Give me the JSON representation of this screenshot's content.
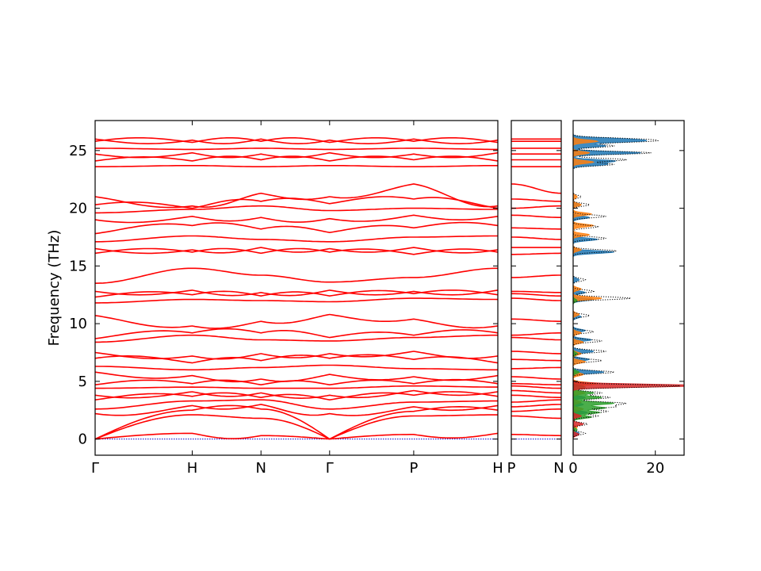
{
  "chart_data": {
    "type": "line",
    "ylabel": "Frequency (THz)",
    "ylim": [
      -1.4,
      27.6
    ],
    "yticks": [
      0,
      5,
      10,
      15,
      20,
      25
    ],
    "grid": false,
    "panels": [
      {
        "name": "band-main",
        "kpoints": [
          "Γ",
          "H",
          "N",
          "Γ",
          "P",
          "H"
        ],
        "kpoint_distances": [
          0,
          0.866,
          1.479,
          2.091,
          2.841,
          3.591
        ],
        "band_color": "#ff0000",
        "zero_line_color": "#0000cc",
        "band_frequencies": [
          {
            "Γ": 0,
            "H": 0.5,
            "N": 0.3,
            "Γ2": 0,
            "P": 0.4,
            "H2": 0.5
          },
          {
            "Γ": 0,
            "H": 2.1,
            "N": 1.8,
            "Γ2": 0,
            "P": 2.0,
            "H2": 2.1
          },
          {
            "Γ": 0,
            "H": 2.5,
            "N": 2.6,
            "Γ2": 0,
            "P": 2.4,
            "H2": 2.5
          },
          {
            "Γ": 2.2,
            "H": 2.9,
            "N": 3.0,
            "Γ2": 2.2,
            "P": 2.8,
            "H2": 2.9
          },
          {
            "Γ": 2.6,
            "H": 3.3,
            "N": 3.4,
            "Γ2": 2.6,
            "P": 3.2,
            "H2": 3.3
          },
          {
            "Γ": 3.4,
            "H": 3.7,
            "N": 3.6,
            "Γ2": 3.4,
            "P": 3.8,
            "H2": 3.7
          },
          {
            "Γ": 3.8,
            "H": 4.1,
            "N": 4.0,
            "Γ2": 3.8,
            "P": 4.2,
            "H2": 4.1
          },
          {
            "Γ": 4.4,
            "H": 4.5,
            "N": 4.4,
            "Γ2": 4.4,
            "P": 4.6,
            "H2": 4.5
          },
          {
            "Γ": 4.7,
            "H": 4.8,
            "N": 4.7,
            "Γ2": 4.7,
            "P": 4.8,
            "H2": 4.8
          },
          {
            "Γ": 5.8,
            "H": 5.5,
            "N": 5.2,
            "Γ2": 5.6,
            "P": 5.4,
            "H2": 5.5
          },
          {
            "Γ": 6.3,
            "H": 6.0,
            "N": 6.2,
            "Γ2": 6.4,
            "P": 6.1,
            "H2": 6.0
          },
          {
            "Γ": 7.0,
            "H": 6.6,
            "N": 6.8,
            "Γ2": 7.0,
            "P": 6.9,
            "H2": 6.6
          },
          {
            "Γ": 7.5,
            "H": 7.2,
            "N": 7.4,
            "Γ2": 7.4,
            "P": 7.6,
            "H2": 7.2
          },
          {
            "Γ": 8.4,
            "H": 9.0,
            "N": 8.6,
            "Γ2": 8.5,
            "P": 8.8,
            "H2": 9.0
          },
          {
            "Γ": 8.7,
            "H": 9.2,
            "N": 9.2,
            "Γ2": 8.8,
            "P": 9.0,
            "H2": 9.2
          },
          {
            "Γ": 10.7,
            "H": 9.8,
            "N": 10.2,
            "Γ2": 10.8,
            "P": 10.4,
            "H2": 9.8
          },
          {
            "Γ": 11.8,
            "H": 12.1,
            "N": 12.0,
            "Γ2": 11.9,
            "P": 12.2,
            "H2": 12.1
          },
          {
            "Γ": 12.3,
            "H": 12.5,
            "N": 12.4,
            "Γ2": 12.4,
            "P": 12.6,
            "H2": 12.5
          },
          {
            "Γ": 12.8,
            "H": 12.9,
            "N": 12.7,
            "Γ2": 12.9,
            "P": 12.8,
            "H2": 12.9
          },
          {
            "Γ": 13.5,
            "H": 14.8,
            "N": 14.2,
            "Γ2": 13.6,
            "P": 14.0,
            "H2": 14.8
          },
          {
            "Γ": 16.1,
            "H": 16.2,
            "N": 16.1,
            "Γ2": 16.2,
            "P": 16.0,
            "H2": 16.2
          },
          {
            "Γ": 16.5,
            "H": 16.4,
            "N": 16.6,
            "Γ2": 16.5,
            "P": 16.6,
            "H2": 16.4
          },
          {
            "Γ": 17.1,
            "H": 17.6,
            "N": 17.3,
            "Γ2": 17.1,
            "P": 17.5,
            "H2": 17.6
          },
          {
            "Γ": 17.8,
            "H": 18.5,
            "N": 18.2,
            "Γ2": 17.9,
            "P": 18.3,
            "H2": 18.5
          },
          {
            "Γ": 19.0,
            "H": 19.3,
            "N": 19.2,
            "Γ2": 19.1,
            "P": 19.4,
            "H2": 19.3
          },
          {
            "Γ": 19.6,
            "H": 19.9,
            "N": 20.2,
            "Γ2": 19.8,
            "P": 20.0,
            "H2": 19.9
          },
          {
            "Γ": 20.3,
            "H": 20.0,
            "N": 20.6,
            "Γ2": 20.4,
            "P": 20.8,
            "H2": 20.0
          },
          {
            "Γ": 21.0,
            "H": 20.2,
            "N": 21.3,
            "Γ2": 21.0,
            "P": 22.1,
            "H2": 20.2
          },
          {
            "Γ": 23.6,
            "H": 23.7,
            "N": 23.6,
            "Γ2": 23.7,
            "P": 23.6,
            "H2": 23.7
          },
          {
            "Γ": 24.1,
            "H": 24.1,
            "N": 24.2,
            "Γ2": 24.1,
            "P": 24.2,
            "H2": 24.1
          },
          {
            "Γ": 24.7,
            "H": 24.8,
            "N": 24.7,
            "Γ2": 24.8,
            "P": 24.7,
            "H2": 24.8
          },
          {
            "Γ": 25.2,
            "H": 25.1,
            "N": 25.2,
            "Γ2": 25.1,
            "P": 25.2,
            "H2": 25.1
          },
          {
            "Γ": 25.8,
            "H": 25.7,
            "N": 25.8,
            "Γ2": 25.7,
            "P": 25.8,
            "H2": 25.7
          },
          {
            "Γ": 26.0,
            "H": 25.9,
            "N": 26.0,
            "Γ2": 25.9,
            "P": 26.0,
            "H2": 25.9
          }
        ]
      },
      {
        "name": "band-pn",
        "kpoints": [
          "P",
          "N"
        ],
        "band_color": "#ff0000",
        "zero_line_color": "#0000cc",
        "band_frequencies_P": [
          0.4,
          2.0,
          2.4,
          2.8,
          3.2,
          3.8,
          4.2,
          4.6,
          4.8,
          5.4,
          6.1,
          6.9,
          7.6,
          8.8,
          9.0,
          10.4,
          12.2,
          12.6,
          12.8,
          14.0,
          16.0,
          16.6,
          17.5,
          18.3,
          19.4,
          20.0,
          20.8,
          22.1,
          23.6,
          24.2,
          24.7,
          25.2,
          25.8,
          26.0
        ],
        "band_frequencies_N": [
          0.3,
          1.8,
          2.6,
          3.0,
          3.4,
          3.6,
          4.0,
          4.4,
          4.7,
          5.2,
          6.2,
          6.8,
          7.4,
          8.6,
          9.2,
          10.2,
          12.0,
          12.4,
          12.7,
          14.2,
          16.1,
          16.6,
          17.3,
          18.2,
          19.2,
          20.2,
          20.6,
          21.3,
          23.6,
          24.2,
          24.7,
          25.2,
          25.8,
          26.0
        ]
      },
      {
        "name": "dos",
        "type": "area",
        "xticks": [
          0,
          20
        ],
        "xlim": [
          0,
          27
        ],
        "series": [
          {
            "color": "#1f77b4",
            "peaks": [
              [
                0.5,
                1.5
              ],
              [
                2.3,
                3.5
              ],
              [
                3.0,
                2.5
              ],
              [
                3.6,
                3.0
              ],
              [
                4.8,
                3.0
              ],
              [
                5.8,
                7.5
              ],
              [
                6.9,
                4.0
              ],
              [
                7.6,
                5.0
              ],
              [
                8.6,
                4.5
              ],
              [
                9.4,
                3.0
              ],
              [
                10.6,
                2.0
              ],
              [
                12.1,
                5.0
              ],
              [
                12.7,
                3.0
              ],
              [
                13.8,
                1.5
              ],
              [
                16.2,
                10.0
              ],
              [
                17.3,
                6.0
              ],
              [
                19.2,
                4.0
              ],
              [
                20.3,
                2.0
              ],
              [
                23.8,
                8.0
              ],
              [
                24.1,
                10.0
              ],
              [
                24.8,
                16.5
              ],
              [
                25.4,
                8.0
              ],
              [
                25.8,
                14.0
              ],
              [
                26.0,
                11.0
              ]
            ]
          },
          {
            "color": "#ff7f0e",
            "peaks": [
              [
                1.0,
                1.0
              ],
              [
                2.6,
                2.5
              ],
              [
                3.2,
                2.0
              ],
              [
                4.0,
                3.0
              ],
              [
                4.8,
                6.0
              ],
              [
                5.6,
                2.5
              ],
              [
                6.7,
                3.0
              ],
              [
                7.4,
                2.0
              ],
              [
                8.4,
                2.5
              ],
              [
                9.2,
                2.0
              ],
              [
                10.8,
                1.5
              ],
              [
                12.2,
                7.0
              ],
              [
                13.0,
                2.0
              ],
              [
                16.4,
                2.0
              ],
              [
                17.7,
                4.0
              ],
              [
                18.5,
                5.0
              ],
              [
                19.5,
                4.5
              ],
              [
                20.3,
                2.0
              ],
              [
                21.0,
                1.0
              ],
              [
                24.0,
                5.0
              ],
              [
                24.8,
                4.0
              ],
              [
                25.8,
                6.0
              ]
            ]
          },
          {
            "color": "#2ca02c",
            "peaks": [
              [
                0.8,
                1.0
              ],
              [
                1.9,
                4.5
              ],
              [
                2.3,
                6.5
              ],
              [
                2.7,
                8.0
              ],
              [
                3.1,
                10.0
              ],
              [
                3.6,
                7.0
              ],
              [
                4.0,
                5.0
              ],
              [
                4.5,
                3.0
              ],
              [
                5.8,
                1.5
              ],
              [
                7.4,
                1.0
              ],
              [
                12.0,
                1.0
              ]
            ]
          },
          {
            "color": "#d62728",
            "peaks": [
              [
                0.4,
                1.5
              ],
              [
                1.3,
                2.5
              ],
              [
                2.0,
                2.0
              ],
              [
                4.6,
                24.0
              ],
              [
                4.7,
                10.0
              ]
            ]
          },
          {
            "color": "#000000",
            "style": "dotted",
            "peaks": [
              [
                0.5,
                3.0
              ],
              [
                1.3,
                3.5
              ],
              [
                2.0,
                6.0
              ],
              [
                2.4,
                8.5
              ],
              [
                2.8,
                10.0
              ],
              [
                3.1,
                12.5
              ],
              [
                3.6,
                9.0
              ],
              [
                4.0,
                7.0
              ],
              [
                4.6,
                26.0
              ],
              [
                5.8,
                10.0
              ],
              [
                6.8,
                7.0
              ],
              [
                7.6,
                8.0
              ],
              [
                8.5,
                7.0
              ],
              [
                9.3,
                5.0
              ],
              [
                10.7,
                4.0
              ],
              [
                12.2,
                14.0
              ],
              [
                12.8,
                5.0
              ],
              [
                13.8,
                3.0
              ],
              [
                16.3,
                10.5
              ],
              [
                17.4,
                8.0
              ],
              [
                18.4,
                6.0
              ],
              [
                19.3,
                8.0
              ],
              [
                20.3,
                4.0
              ],
              [
                21.0,
                2.0
              ],
              [
                23.8,
                10.0
              ],
              [
                24.2,
                13.0
              ],
              [
                24.8,
                19.0
              ],
              [
                25.4,
                10.0
              ],
              [
                25.8,
                16.0
              ],
              [
                26.0,
                13.0
              ]
            ]
          }
        ]
      }
    ]
  }
}
